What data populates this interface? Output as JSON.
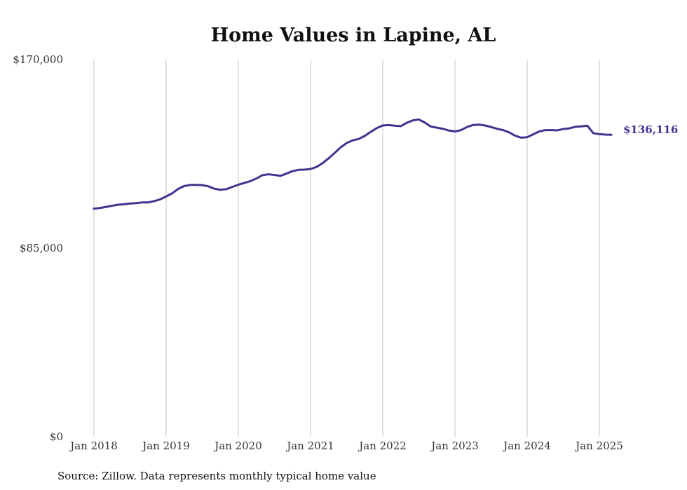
{
  "chart_data": {
    "type": "line",
    "title": "Home Values in Lapine, AL",
    "source": "Source: Zillow. Data represents monthly typical home value",
    "ylim": [
      0,
      170000
    ],
    "yticks": [
      {
        "value": 0,
        "label": "$0"
      },
      {
        "value": 85000,
        "label": "$85,000"
      },
      {
        "value": 170000,
        "label": "$170,000"
      }
    ],
    "xlim": [
      "2018-01",
      "2025-03"
    ],
    "xticks": [
      {
        "date": "2018-01",
        "label": "Jan 2018"
      },
      {
        "date": "2019-01",
        "label": "Jan 2019"
      },
      {
        "date": "2020-01",
        "label": "Jan 2020"
      },
      {
        "date": "2021-01",
        "label": "Jan 2021"
      },
      {
        "date": "2022-01",
        "label": "Jan 2022"
      },
      {
        "date": "2023-01",
        "label": "Jan 2023"
      },
      {
        "date": "2024-01",
        "label": "Jan 2024"
      },
      {
        "date": "2025-01",
        "label": "Jan 2025"
      }
    ],
    "grid": "vertical",
    "color": "#3f3590",
    "end_label": "$136,116",
    "series": [
      {
        "x": [
          "2018-01",
          "2018-02",
          "2018-03",
          "2018-04",
          "2018-05",
          "2018-06",
          "2018-07",
          "2018-08",
          "2018-09",
          "2018-10",
          "2018-11",
          "2018-12",
          "2019-01",
          "2019-02",
          "2019-03",
          "2019-04",
          "2019-05",
          "2019-06",
          "2019-07",
          "2019-08",
          "2019-09",
          "2019-10",
          "2019-11",
          "2019-12",
          "2020-01",
          "2020-02",
          "2020-03",
          "2020-04",
          "2020-05",
          "2020-06",
          "2020-07",
          "2020-08",
          "2020-09",
          "2020-10",
          "2020-11",
          "2020-12",
          "2021-01",
          "2021-02",
          "2021-03",
          "2021-04",
          "2021-05",
          "2021-06",
          "2021-07",
          "2021-08",
          "2021-09",
          "2021-10",
          "2021-11",
          "2021-12",
          "2022-01",
          "2022-02",
          "2022-03",
          "2022-04",
          "2022-05",
          "2022-06",
          "2022-07",
          "2022-08",
          "2022-09",
          "2022-10",
          "2022-11",
          "2022-12",
          "2023-01",
          "2023-02",
          "2023-03",
          "2023-04",
          "2023-05",
          "2023-06",
          "2023-07",
          "2023-08",
          "2023-09",
          "2023-10",
          "2023-11",
          "2023-12",
          "2024-01",
          "2024-02",
          "2024-03",
          "2024-04",
          "2024-05",
          "2024-06",
          "2024-07",
          "2024-08",
          "2024-09",
          "2024-10",
          "2024-11",
          "2024-12",
          "2025-01",
          "2025-02",
          "2025-03"
        ],
        "values": [
          102800,
          103100,
          103600,
          104100,
          104600,
          104800,
          105100,
          105300,
          105600,
          105600,
          106200,
          107000,
          108300,
          109700,
          111700,
          113000,
          113500,
          113500,
          113400,
          112900,
          111800,
          111300,
          111600,
          112600,
          113600,
          114400,
          115200,
          116400,
          117900,
          118300,
          118000,
          117600,
          118600,
          119700,
          120300,
          120400,
          120700,
          121600,
          123300,
          125500,
          127900,
          130400,
          132400,
          133600,
          134200,
          135600,
          137400,
          139100,
          140300,
          140500,
          140200,
          140000,
          141500,
          142600,
          143000,
          141600,
          139800,
          139300,
          138800,
          138000,
          137600,
          138200,
          139600,
          140500,
          140700,
          140300,
          139600,
          138800,
          138200,
          137200,
          135700,
          134800,
          135000,
          136300,
          137600,
          138200,
          138200,
          138100,
          138700,
          139000,
          139700,
          139900,
          140200,
          136800,
          136400,
          136200,
          136116
        ]
      }
    ]
  }
}
